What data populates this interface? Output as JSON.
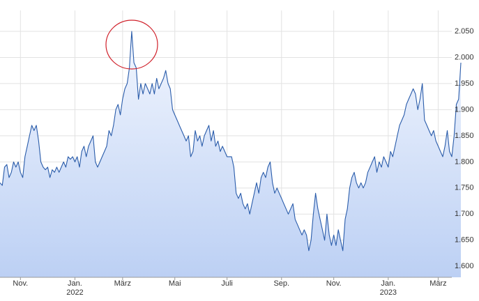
{
  "chart_data": {
    "type": "area-line",
    "values": [
      1.76,
      1.755,
      1.79,
      1.795,
      1.77,
      1.78,
      1.8,
      1.79,
      1.8,
      1.78,
      1.77,
      1.81,
      1.83,
      1.85,
      1.87,
      1.86,
      1.87,
      1.84,
      1.8,
      1.79,
      1.785,
      1.79,
      1.77,
      1.785,
      1.78,
      1.79,
      1.78,
      1.79,
      1.8,
      1.79,
      1.81,
      1.805,
      1.81,
      1.8,
      1.81,
      1.79,
      1.82,
      1.83,
      1.81,
      1.83,
      1.84,
      1.85,
      1.8,
      1.79,
      1.8,
      1.81,
      1.82,
      1.83,
      1.86,
      1.85,
      1.87,
      1.9,
      1.91,
      1.89,
      1.92,
      1.94,
      1.95,
      1.98,
      2.05,
      1.99,
      1.98,
      1.92,
      1.95,
      1.93,
      1.95,
      1.94,
      1.93,
      1.95,
      1.93,
      1.96,
      1.94,
      1.95,
      1.96,
      1.975,
      1.95,
      1.94,
      1.9,
      1.89,
      1.88,
      1.87,
      1.86,
      1.85,
      1.84,
      1.85,
      1.81,
      1.82,
      1.86,
      1.84,
      1.85,
      1.83,
      1.85,
      1.86,
      1.87,
      1.84,
      1.86,
      1.83,
      1.84,
      1.82,
      1.83,
      1.82,
      1.81,
      1.81,
      1.81,
      1.79,
      1.74,
      1.73,
      1.74,
      1.72,
      1.71,
      1.72,
      1.7,
      1.72,
      1.74,
      1.76,
      1.74,
      1.77,
      1.78,
      1.77,
      1.79,
      1.8,
      1.76,
      1.74,
      1.75,
      1.74,
      1.73,
      1.72,
      1.71,
      1.7,
      1.71,
      1.72,
      1.69,
      1.68,
      1.67,
      1.66,
      1.67,
      1.66,
      1.63,
      1.65,
      1.7,
      1.74,
      1.71,
      1.69,
      1.67,
      1.65,
      1.7,
      1.66,
      1.64,
      1.66,
      1.64,
      1.67,
      1.65,
      1.63,
      1.69,
      1.71,
      1.75,
      1.77,
      1.78,
      1.76,
      1.75,
      1.76,
      1.75,
      1.76,
      1.78,
      1.79,
      1.8,
      1.81,
      1.78,
      1.8,
      1.79,
      1.81,
      1.8,
      1.79,
      1.82,
      1.81,
      1.83,
      1.85,
      1.87,
      1.88,
      1.89,
      1.91,
      1.92,
      1.93,
      1.94,
      1.93,
      1.9,
      1.92,
      1.95,
      1.88,
      1.87,
      1.86,
      1.85,
      1.86,
      1.84,
      1.83,
      1.82,
      1.81,
      1.83,
      1.86,
      1.82,
      1.81,
      1.85,
      1.91,
      1.92,
      1.99
    ],
    "color": "#2a5caa",
    "xlim": [
      0,
      199
    ],
    "xticks": [
      {
        "value": 9,
        "label": "Nov."
      },
      {
        "value": 33,
        "label": "Jan. 2022"
      },
      {
        "value": 54,
        "label": "März"
      },
      {
        "value": 77,
        "label": "Mai"
      },
      {
        "value": 100,
        "label": "Juli"
      },
      {
        "value": 124,
        "label": "Sep."
      },
      {
        "value": 147,
        "label": "Nov."
      },
      {
        "value": 171,
        "label": "Jan. 2023"
      },
      {
        "value": 193,
        "label": "März"
      }
    ],
    "ylim": [
      1.579,
      2.09
    ],
    "yticks": [
      {
        "value": 1.6,
        "label": "1.600"
      },
      {
        "value": 1.65,
        "label": "1.650"
      },
      {
        "value": 1.7,
        "label": "1.700"
      },
      {
        "value": 1.75,
        "label": "1.750"
      },
      {
        "value": 1.8,
        "label": "1.800"
      },
      {
        "value": 1.85,
        "label": "1.850"
      },
      {
        "value": 1.9,
        "label": "1.900"
      },
      {
        "value": 1.95,
        "label": "1.950"
      },
      {
        "value": 2.0,
        "label": "2.000"
      },
      {
        "value": 2.05,
        "label": "2.050"
      }
    ],
    "grid": true
  }
}
